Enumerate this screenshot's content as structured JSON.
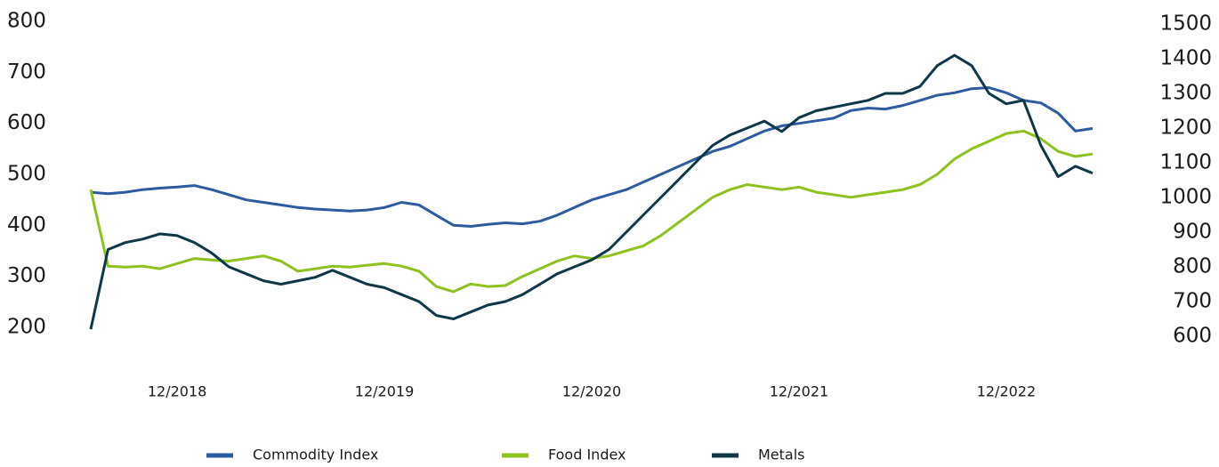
{
  "chart_data": {
    "type": "line",
    "categories": [
      "07/2018",
      "08/2018",
      "09/2018",
      "10/2018",
      "11/2018",
      "12/2018",
      "01/2019",
      "02/2019",
      "03/2019",
      "04/2019",
      "05/2019",
      "06/2019",
      "07/2019",
      "08/2019",
      "09/2019",
      "10/2019",
      "11/2019",
      "12/2019",
      "01/2020",
      "02/2020",
      "03/2020",
      "04/2020",
      "05/2020",
      "06/2020",
      "07/2020",
      "08/2020",
      "09/2020",
      "10/2020",
      "11/2020",
      "12/2020",
      "01/2021",
      "02/2021",
      "03/2021",
      "04/2021",
      "05/2021",
      "06/2021",
      "07/2021",
      "08/2021",
      "09/2021",
      "10/2021",
      "11/2021",
      "12/2021",
      "01/2022",
      "02/2022",
      "03/2022",
      "04/2022",
      "05/2022",
      "06/2022",
      "07/2022",
      "08/2022",
      "09/2022",
      "10/2022",
      "11/2022",
      "12/2022",
      "01/2023",
      "02/2023",
      "03/2023",
      "04/2023",
      "05/2023"
    ],
    "xticks": [
      "12/2018",
      "12/2019",
      "12/2020",
      "12/2021",
      "12/2022"
    ],
    "series": [
      {
        "name": "Commodity Index",
        "color": "#2e5b9f",
        "values": [
          465,
          462,
          465,
          470,
          473,
          475,
          478,
          470,
          460,
          450,
          445,
          440,
          435,
          432,
          430,
          428,
          430,
          435,
          445,
          440,
          420,
          400,
          398,
          402,
          405,
          403,
          408,
          420,
          435,
          450,
          460,
          470,
          485,
          500,
          515,
          530,
          545,
          555,
          570,
          585,
          595,
          600,
          605,
          610,
          625,
          630,
          628,
          635,
          645,
          655,
          660,
          668,
          670,
          660,
          645,
          640,
          620,
          585,
          590
        ]
      },
      {
        "name": "Food Index",
        "color": "#8dc21f",
        "values": [
          470,
          320,
          318,
          320,
          315,
          325,
          335,
          332,
          330,
          335,
          340,
          330,
          310,
          315,
          320,
          318,
          322,
          325,
          320,
          310,
          280,
          270,
          285,
          280,
          282,
          300,
          315,
          330,
          340,
          335,
          340,
          350,
          360,
          380,
          405,
          430,
          455,
          470,
          480,
          475,
          470,
          475,
          465,
          460,
          455,
          460,
          465,
          470,
          480,
          500,
          530,
          550,
          565,
          580,
          585,
          570,
          545,
          535,
          540
        ]
      },
      {
        "name": "Metals",
        "color": "#0e3748",
        "axis": "y2",
        "values": [
          620,
          850,
          870,
          880,
          895,
          890,
          870,
          840,
          800,
          780,
          760,
          750,
          760,
          770,
          790,
          770,
          750,
          740,
          720,
          700,
          660,
          650,
          670,
          690,
          700,
          720,
          750,
          780,
          800,
          820,
          850,
          900,
          950,
          1000,
          1050,
          1100,
          1150,
          1180,
          1200,
          1220,
          1190,
          1230,
          1250,
          1260,
          1270,
          1280,
          1300,
          1300,
          1320,
          1380,
          1410,
          1380,
          1300,
          1270,
          1280,
          1150,
          1060,
          1090,
          1070
        ]
      }
    ],
    "ylim": [
      200,
      800
    ],
    "yticks": [
      200,
      300,
      400,
      500,
      600,
      700,
      800
    ],
    "y2lim": [
      600,
      1500
    ],
    "y2ticks": [
      600,
      700,
      800,
      900,
      1000,
      1100,
      1200,
      1300,
      1400,
      1500
    ],
    "legend": "bottom"
  }
}
